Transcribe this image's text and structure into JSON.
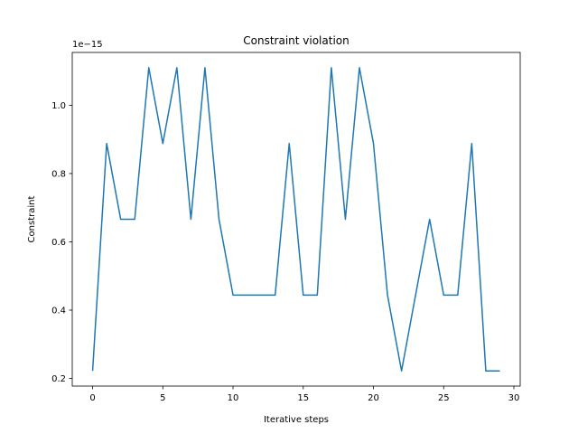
{
  "chart_data": {
    "type": "line",
    "title": "Constraint violation",
    "xlabel": "Iterative steps",
    "ylabel": "Constraint",
    "y_offset_label": "1e−15",
    "xlim": [
      -1.45,
      30.45
    ],
    "ylim": [
      0.1776,
      1.1546
    ],
    "xticks": [
      0,
      5,
      10,
      15,
      20,
      25,
      30
    ],
    "xtick_labels": [
      "0",
      "5",
      "10",
      "15",
      "20",
      "25",
      "30"
    ],
    "yticks": [
      0.2,
      0.4,
      0.6,
      0.8,
      1.0
    ],
    "ytick_labels": [
      "0.2",
      "0.4",
      "0.6",
      "0.8",
      "1.0"
    ],
    "grid": false,
    "series": [
      {
        "color": "#1f77b4",
        "x": [
          0,
          1,
          2,
          3,
          4,
          5,
          6,
          7,
          8,
          9,
          10,
          11,
          12,
          13,
          14,
          15,
          16,
          17,
          18,
          19,
          20,
          21,
          22,
          23,
          24,
          25,
          26,
          27,
          28,
          29
        ],
        "values": [
          0.222,
          0.888,
          0.666,
          0.666,
          1.11,
          0.888,
          1.11,
          0.666,
          1.11,
          0.666,
          0.444,
          0.444,
          0.444,
          0.444,
          0.888,
          0.444,
          0.444,
          1.11,
          0.666,
          1.11,
          0.888,
          0.444,
          0.222,
          0.444,
          0.666,
          0.444,
          0.444,
          0.888,
          0.222,
          0.222
        ]
      }
    ]
  }
}
